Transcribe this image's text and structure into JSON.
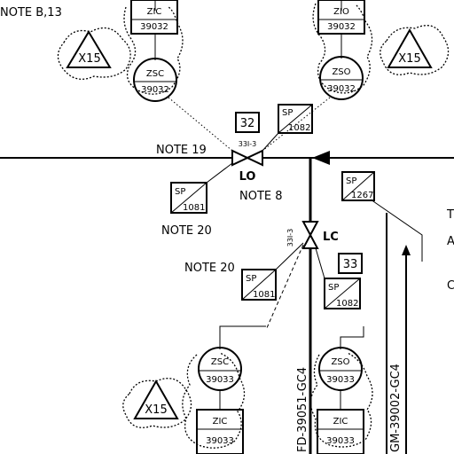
{
  "notes": {
    "note_b13": "NOTE B,13",
    "note_19": "NOTE 19",
    "note_8": "NOTE 8",
    "note_20_a": "NOTE 20",
    "note_20_b": "NOTE 20"
  },
  "valves": {
    "top": {
      "tag": "33I-3",
      "position": "LO",
      "number": "32"
    },
    "mid": {
      "tag": "33I-3",
      "position": "LC",
      "number": "33"
    }
  },
  "instruments": {
    "zic_top_left": {
      "type": "ZIC",
      "number": "39032"
    },
    "zsc_top": {
      "type": "ZSC",
      "number": "39032"
    },
    "zio_top_right": {
      "type": "ZIO",
      "number": "39032"
    },
    "zso_top": {
      "type": "ZSO",
      "number": "39032"
    },
    "zsc_bottom": {
      "type": "ZSC",
      "number": "39033"
    },
    "zic_bottom": {
      "type": "ZIC",
      "number": "39033"
    },
    "zso_bottom": {
      "type": "ZSO",
      "number": "39033"
    },
    "zic_bottom_right": {
      "type": "ZIC",
      "number": "39033"
    }
  },
  "sp_boxes": {
    "sp_top": {
      "label": "SP",
      "number": "1082"
    },
    "sp_left": {
      "label": "SP",
      "number": "1081"
    },
    "sp_note20": {
      "label": "SP",
      "number": "1081"
    },
    "sp_33": {
      "label": "SP",
      "number": "1082"
    },
    "sp_right": {
      "label": "SP",
      "number": "1267"
    }
  },
  "revisions": {
    "left_top": "X15",
    "right_top": "X15",
    "left_bottom": "X15"
  },
  "lines": {
    "line_a": "FD-39051-GC4",
    "line_b": "GM-39002-GC4"
  },
  "edge_text": {
    "t": "T",
    "a": "A",
    "c": "C"
  }
}
